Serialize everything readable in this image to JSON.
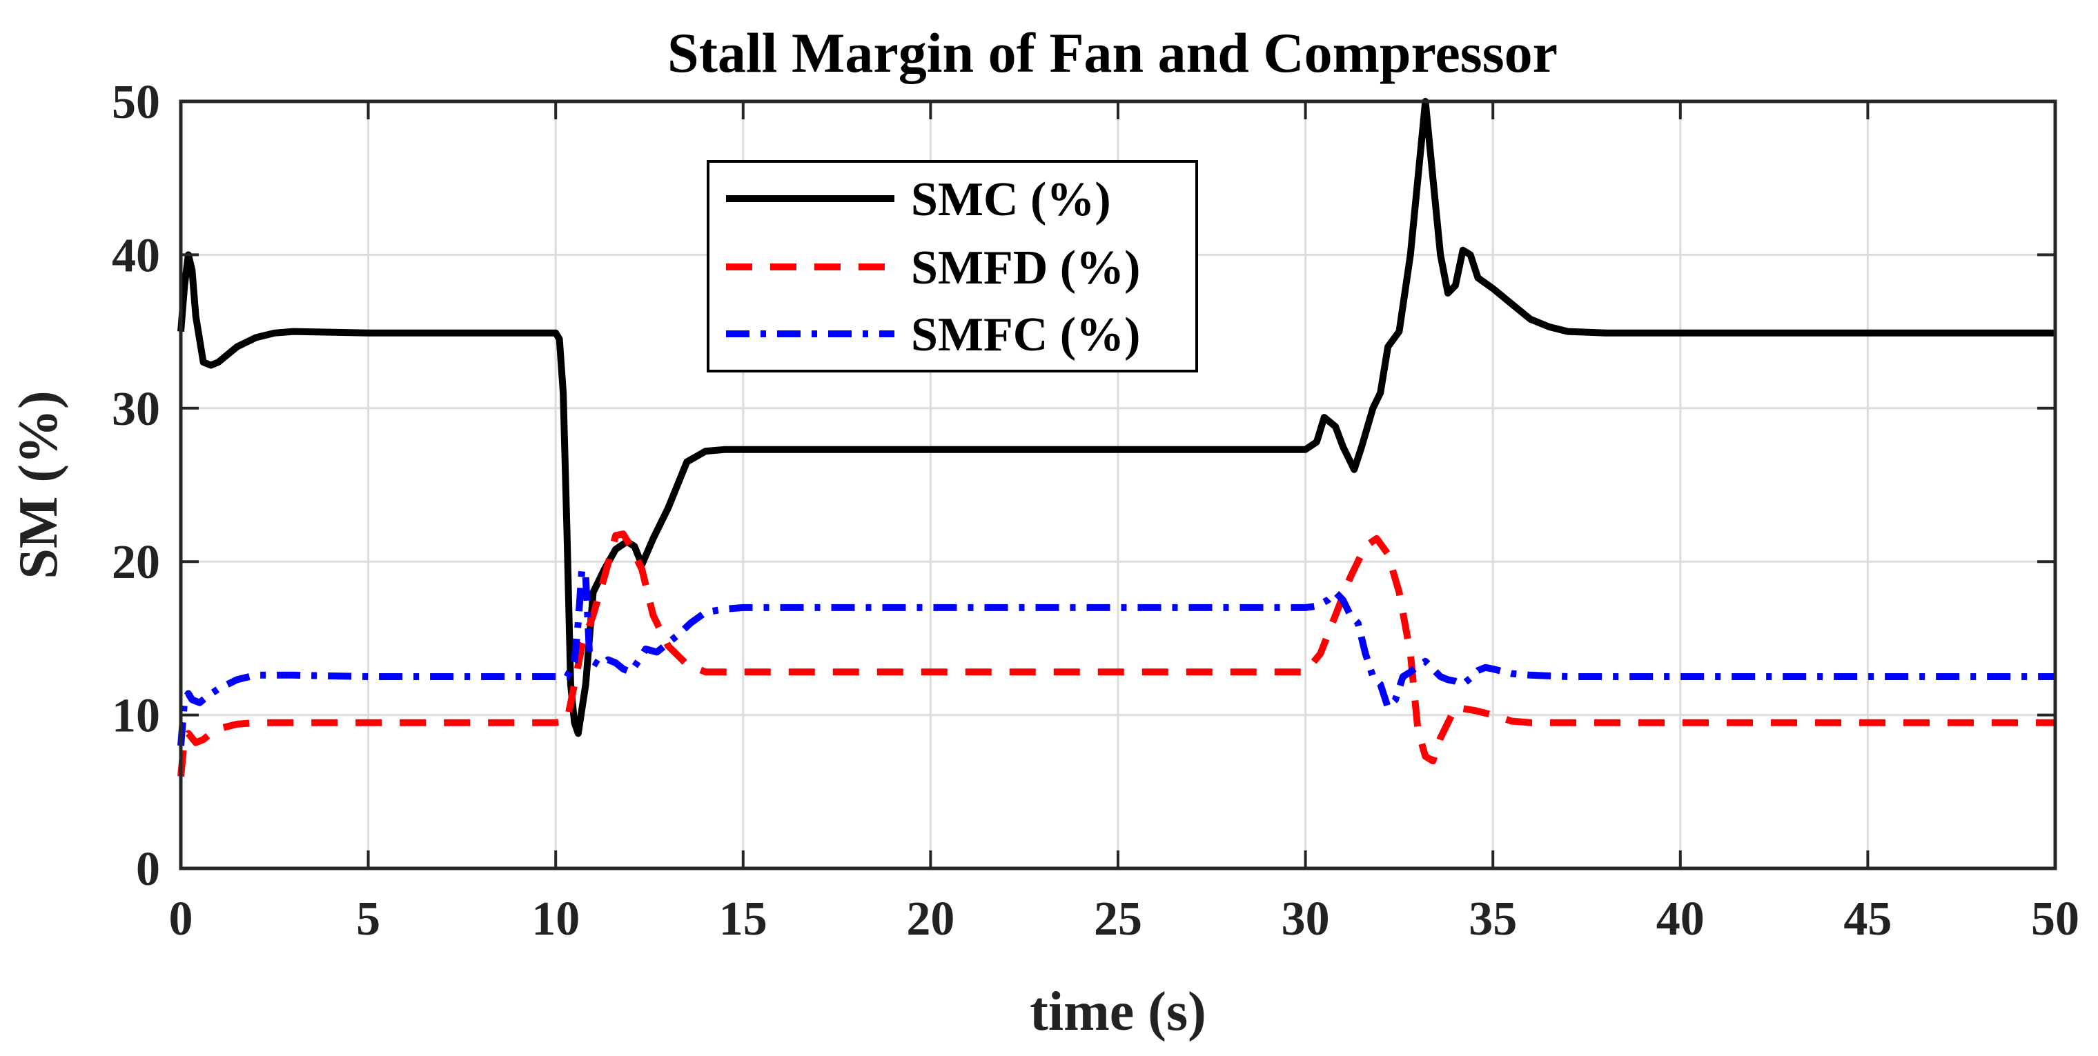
{
  "chart_data": {
    "type": "line",
    "title": "Stall Margin of Fan and Compressor",
    "xlabel": "time (s)",
    "ylabel": "SM (%)",
    "xlim": [
      0,
      50
    ],
    "ylim": [
      0,
      50
    ],
    "xticks": [
      0,
      5,
      10,
      15,
      20,
      25,
      30,
      35,
      40,
      45,
      50
    ],
    "yticks": [
      0,
      10,
      20,
      30,
      40,
      50
    ],
    "xtick_labels": [
      "0",
      "5",
      "10",
      "15",
      "20",
      "25",
      "30",
      "35",
      "40",
      "45",
      "50"
    ],
    "ytick_labels": [
      "0",
      "10",
      "20",
      "30",
      "40",
      "50"
    ],
    "grid": true,
    "legend_position": "top-center",
    "series": [
      {
        "name": "SMC (%)",
        "color": "#000000",
        "style": "solid",
        "x": [
          0,
          0.1,
          0.2,
          0.3,
          0.4,
          0.6,
          0.8,
          1.0,
          1.5,
          2.0,
          2.5,
          3,
          5,
          8,
          10,
          10.1,
          10.2,
          10.3,
          10.4,
          10.5,
          10.6,
          10.8,
          11.0,
          11.3,
          11.6,
          11.9,
          12.1,
          12.3,
          12.6,
          13.0,
          13.5,
          14.0,
          14.5,
          15,
          20,
          25,
          30,
          30.3,
          30.5,
          30.8,
          31.0,
          31.3,
          31.5,
          31.8,
          32.0,
          32.2,
          32.5,
          32.8,
          33.0,
          33.2,
          33.4,
          33.6,
          33.8,
          34.0,
          34.2,
          34.4,
          34.6,
          35.0,
          35.5,
          36.0,
          36.5,
          37.0,
          38.0,
          40.0,
          45.0,
          50.0
        ],
        "values": [
          35,
          38,
          40,
          39,
          36,
          33,
          32.8,
          33,
          34,
          34.6,
          34.9,
          35,
          34.9,
          34.9,
          34.9,
          34.5,
          31,
          22,
          12,
          9.5,
          8.8,
          12,
          18,
          19.5,
          20.8,
          21.3,
          21,
          19.8,
          21.5,
          23.5,
          26.5,
          27.2,
          27.3,
          27.3,
          27.3,
          27.3,
          27.3,
          27.8,
          29.4,
          28.8,
          27.5,
          26,
          27.5,
          30,
          31,
          34,
          35,
          40,
          45,
          50,
          45,
          40,
          37.5,
          38,
          40.3,
          40,
          38.5,
          37.8,
          36.8,
          35.8,
          35.3,
          35,
          34.9,
          34.9,
          34.9,
          34.9
        ]
      },
      {
        "name": "SMFD (%)",
        "color": "#ff0000",
        "style": "dashed",
        "x": [
          0,
          0.1,
          0.2,
          0.4,
          0.6,
          0.8,
          1.0,
          1.5,
          2.0,
          3.0,
          5.0,
          10.0,
          10.3,
          10.5,
          10.7,
          11.0,
          11.3,
          11.6,
          11.8,
          12.0,
          12.3,
          12.6,
          13.0,
          13.5,
          14.0,
          15.0,
          20.0,
          25.0,
          30.0,
          30.4,
          30.8,
          31.2,
          31.6,
          31.9,
          32.2,
          32.5,
          32.8,
          33.0,
          33.2,
          33.4,
          33.6,
          34.0,
          34.5,
          35.0,
          35.5,
          36.0,
          37.0,
          40.0,
          50.0
        ],
        "values": [
          6,
          8.5,
          8.8,
          8.2,
          8.4,
          8.8,
          9.1,
          9.4,
          9.5,
          9.5,
          9.5,
          9.5,
          9.6,
          12,
          14.5,
          16.5,
          19,
          21.7,
          21.8,
          21,
          19.5,
          16.5,
          14.5,
          13.3,
          12.8,
          12.8,
          12.8,
          12.8,
          12.8,
          14,
          16.5,
          19,
          21,
          21.5,
          20.5,
          18,
          14,
          9,
          7.3,
          7,
          8.5,
          10.5,
          10.3,
          10,
          9.6,
          9.5,
          9.5,
          9.5,
          9.5
        ]
      },
      {
        "name": "SMFC (%)",
        "color": "#0000ff",
        "style": "dashdot",
        "x": [
          0,
          0.1,
          0.2,
          0.3,
          0.5,
          0.7,
          1.0,
          1.5,
          2.0,
          3.0,
          5.0,
          10.0,
          10.3,
          10.5,
          10.6,
          10.7,
          10.8,
          10.9,
          11.0,
          11.2,
          11.4,
          11.6,
          11.8,
          12.0,
          12.2,
          12.4,
          12.7,
          13.0,
          13.3,
          13.6,
          14.0,
          14.5,
          15.0,
          20.0,
          25.0,
          30.0,
          30.3,
          30.6,
          30.8,
          31.0,
          31.2,
          31.4,
          31.6,
          31.8,
          32.0,
          32.2,
          32.4,
          32.6,
          32.8,
          33.0,
          33.2,
          33.4,
          33.6,
          33.8,
          34.0,
          34.2,
          34.4,
          34.6,
          34.8,
          35.0,
          35.5,
          36.0,
          37.0,
          40.0,
          45.0,
          50.0
        ],
        "values": [
          8,
          11,
          11.4,
          11,
          10.8,
          11.2,
          11.7,
          12.3,
          12.6,
          12.6,
          12.5,
          12.5,
          12.5,
          13.5,
          16,
          19.5,
          19,
          14,
          13.5,
          13.2,
          13.6,
          13.4,
          13,
          12.8,
          13.5,
          14.3,
          14.1,
          14.7,
          15.3,
          16,
          16.7,
          16.9,
          17,
          17,
          17,
          17,
          17.1,
          17.5,
          18,
          17.5,
          16.5,
          16,
          14,
          12.5,
          12,
          10.5,
          11,
          12.5,
          12.8,
          13.2,
          13.5,
          13,
          12.5,
          12.3,
          12.2,
          12,
          12.4,
          12.9,
          13.1,
          13,
          12.7,
          12.6,
          12.5,
          12.5,
          12.5,
          12.5
        ]
      }
    ]
  }
}
